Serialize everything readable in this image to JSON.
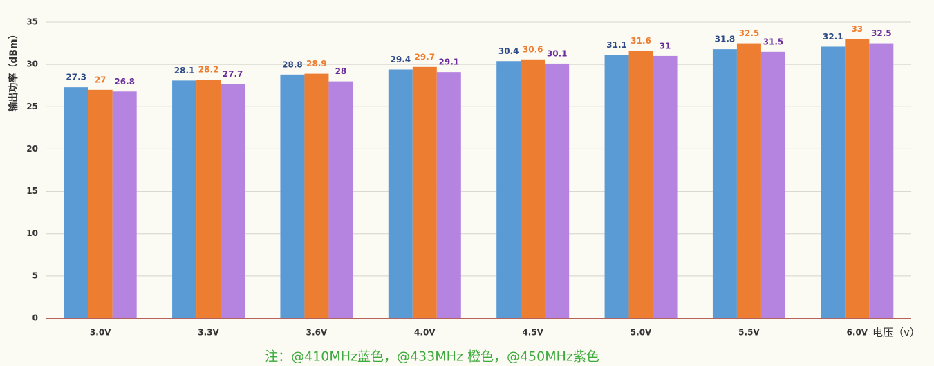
{
  "chart_data": {
    "type": "bar",
    "ylabel": "输出功率（dBm）",
    "xlabel": "电压（v）",
    "note": "注：@410MHz蓝色，@433MHz 橙色，@450MHz紫色",
    "categories": [
      "3.0V",
      "3.3V",
      "3.6V",
      "4.0V",
      "4.5V",
      "5.0V",
      "5.5V",
      "6.0V"
    ],
    "series": [
      {
        "color": "#5b9bd5",
        "label_color": "#2e4a86",
        "values": [
          27.3,
          28.1,
          28.8,
          29.4,
          30.4,
          31.1,
          31.8,
          32.1
        ]
      },
      {
        "color": "#ed7d31",
        "label_color": "#ed7d31",
        "values": [
          27,
          28.2,
          28.9,
          29.7,
          30.6,
          31.6,
          32.5,
          33
        ]
      },
      {
        "color": "#b584e0",
        "label_color": "#6a2c9a",
        "values": [
          26.8,
          27.7,
          28,
          29.1,
          30.1,
          31,
          31.5,
          32.5
        ]
      }
    ],
    "ylim": [
      0,
      35
    ],
    "yticks": [
      0,
      5,
      10,
      15,
      20,
      25,
      30,
      35
    ],
    "grid": true
  }
}
